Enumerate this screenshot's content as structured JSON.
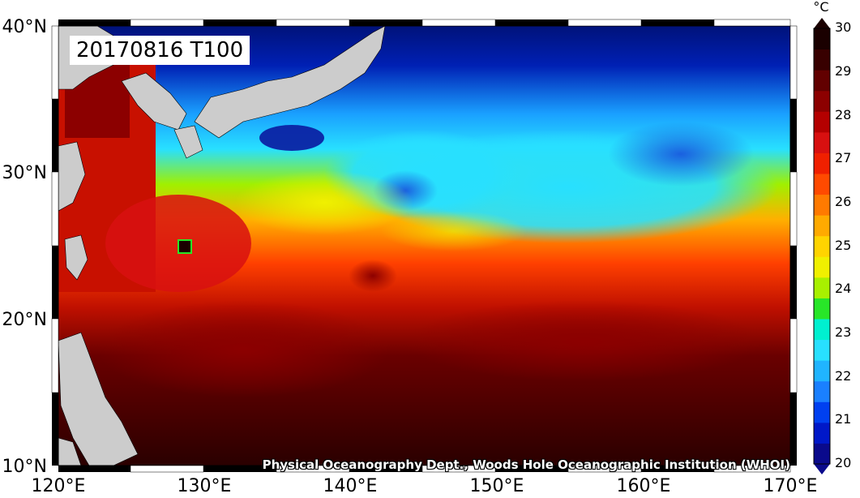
{
  "map": {
    "title": "20170816 T100",
    "credit": "Physical Oceanography Dept., Woods Hole Oceanographic Institution (WHOI)",
    "x_ticks": [
      "120°E",
      "130°E",
      "140°E",
      "150°E",
      "160°E",
      "170°E"
    ],
    "y_ticks": [
      "40°N",
      "30°N",
      "20°N",
      "10°N"
    ],
    "extent": {
      "lon": [
        120,
        170
      ],
      "lat": [
        10,
        40
      ]
    },
    "land_color": "#cccccc"
  },
  "colorbar": {
    "unit": "°C",
    "labels": [
      "30",
      "29",
      "28",
      "27",
      "26",
      "25",
      "24",
      "23",
      "22",
      "21",
      "20"
    ],
    "range": [
      20,
      30
    ],
    "colors": [
      "#0a0a8c",
      "#0018c8",
      "#0040f0",
      "#1a80ff",
      "#20b4ff",
      "#28e0ff",
      "#00f0d0",
      "#28e628",
      "#a8f000",
      "#f0f000",
      "#ffd400",
      "#ffaa00",
      "#ff7a00",
      "#ff4a00",
      "#f02000",
      "#d81010",
      "#b40000",
      "#8c0000",
      "#620000",
      "#380000",
      "#1a0000"
    ]
  }
}
